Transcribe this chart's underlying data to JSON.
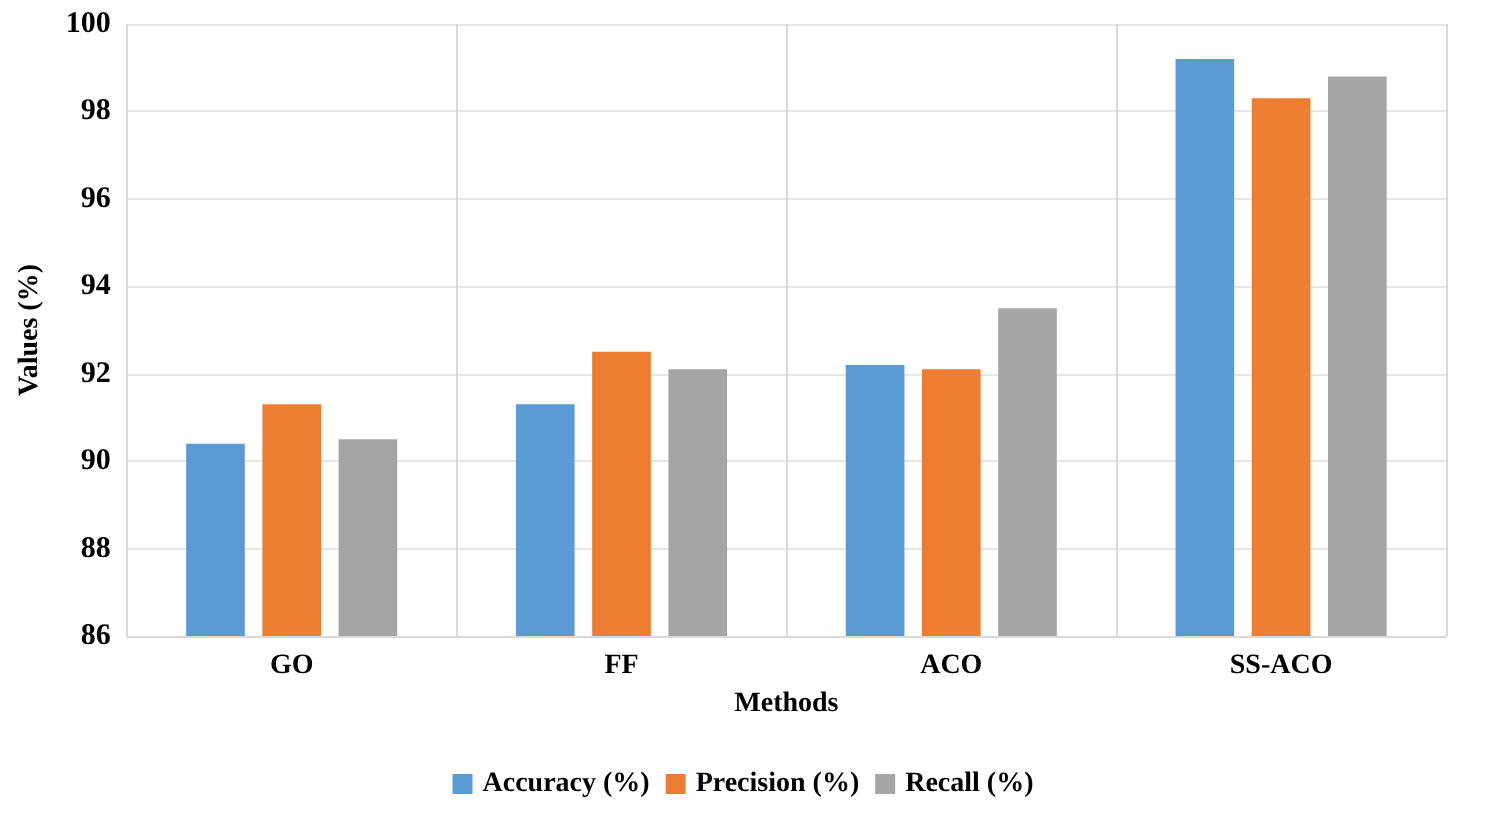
{
  "chart_data": {
    "type": "bar",
    "xlabel": "Methods",
    "ylabel": "Values (%)",
    "categories": [
      "GO",
      "FF",
      "ACO",
      "SS-ACO"
    ],
    "series": [
      {
        "name": "Accuracy (%)",
        "color": "#5b9bd5",
        "values": [
          90.4,
          91.3,
          92.2,
          99.2
        ]
      },
      {
        "name": "Precision (%)",
        "color": "#ed7d31",
        "values": [
          91.3,
          92.5,
          92.1,
          98.3
        ]
      },
      {
        "name": "Recall (%)",
        "color": "#a5a5a5",
        "values": [
          90.5,
          92.1,
          93.5,
          98.8
        ]
      }
    ],
    "ylim": [
      86,
      100
    ],
    "yticks": [
      86,
      88,
      90,
      92,
      94,
      96,
      98,
      100
    ],
    "grid": true,
    "legend": "bottom"
  }
}
